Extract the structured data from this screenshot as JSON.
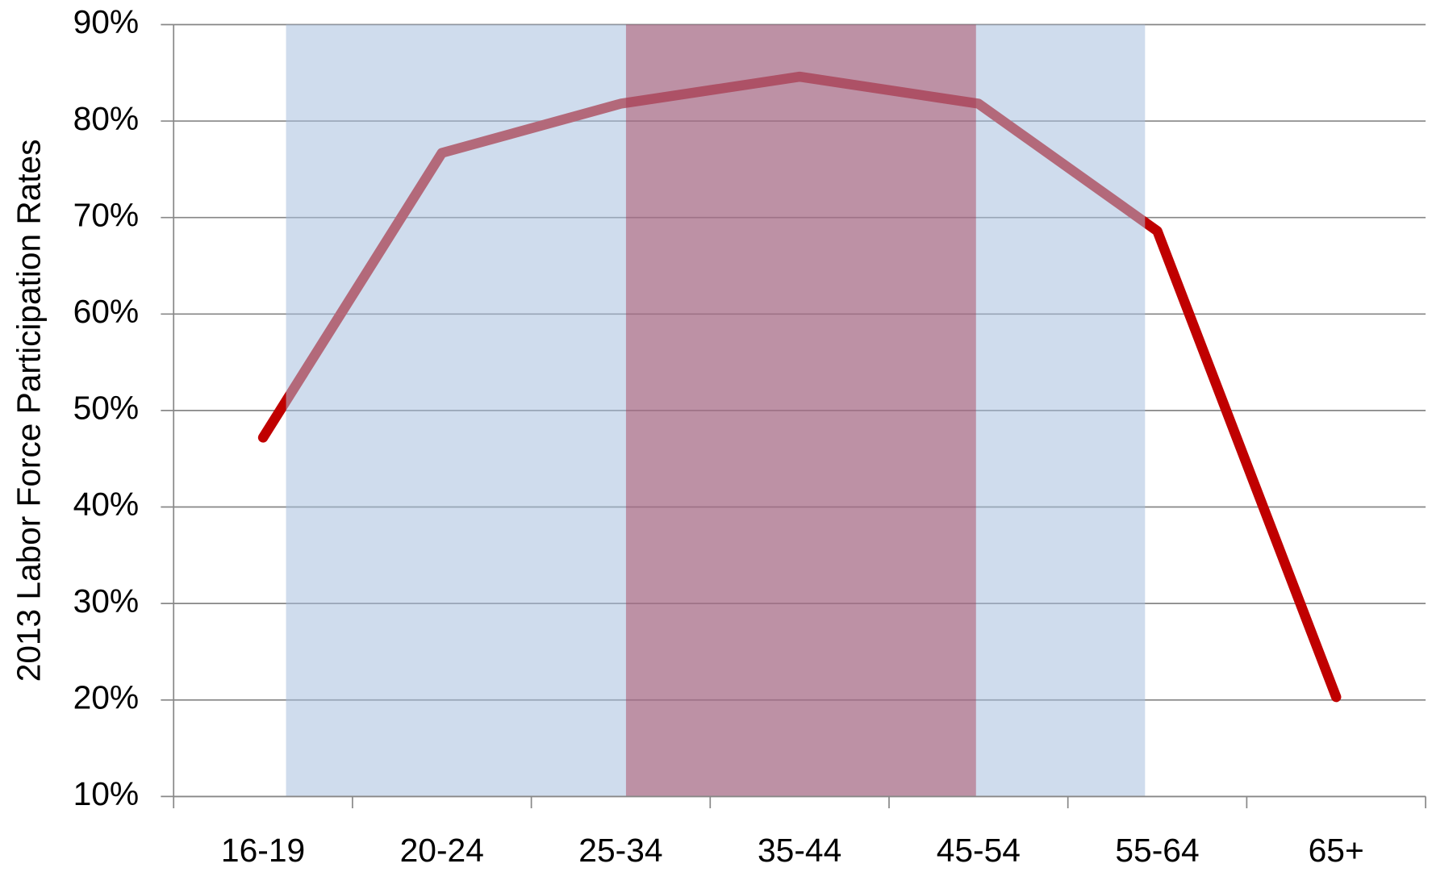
{
  "chart_data": {
    "type": "line",
    "y_label": "2013 Labor Force Participation Rates",
    "categories": [
      "16-19",
      "20-24",
      "25-34",
      "35-44",
      "45-54",
      "55-64",
      "65+"
    ],
    "values": [
      47.2,
      76.7,
      81.8,
      84.6,
      81.8,
      68.6,
      20.3
    ],
    "color": "#c00000",
    "ylim": [
      10,
      90
    ],
    "yticks": [
      {
        "value": 10,
        "label": "10%"
      },
      {
        "value": 20,
        "label": "20%"
      },
      {
        "value": 30,
        "label": "30%"
      },
      {
        "value": 40,
        "label": "40%"
      },
      {
        "value": 50,
        "label": "50%"
      },
      {
        "value": 60,
        "label": "60%"
      },
      {
        "value": 70,
        "label": "70%"
      },
      {
        "value": 80,
        "label": "80%"
      },
      {
        "value": 90,
        "label": "90%"
      }
    ],
    "grid": true
  }
}
